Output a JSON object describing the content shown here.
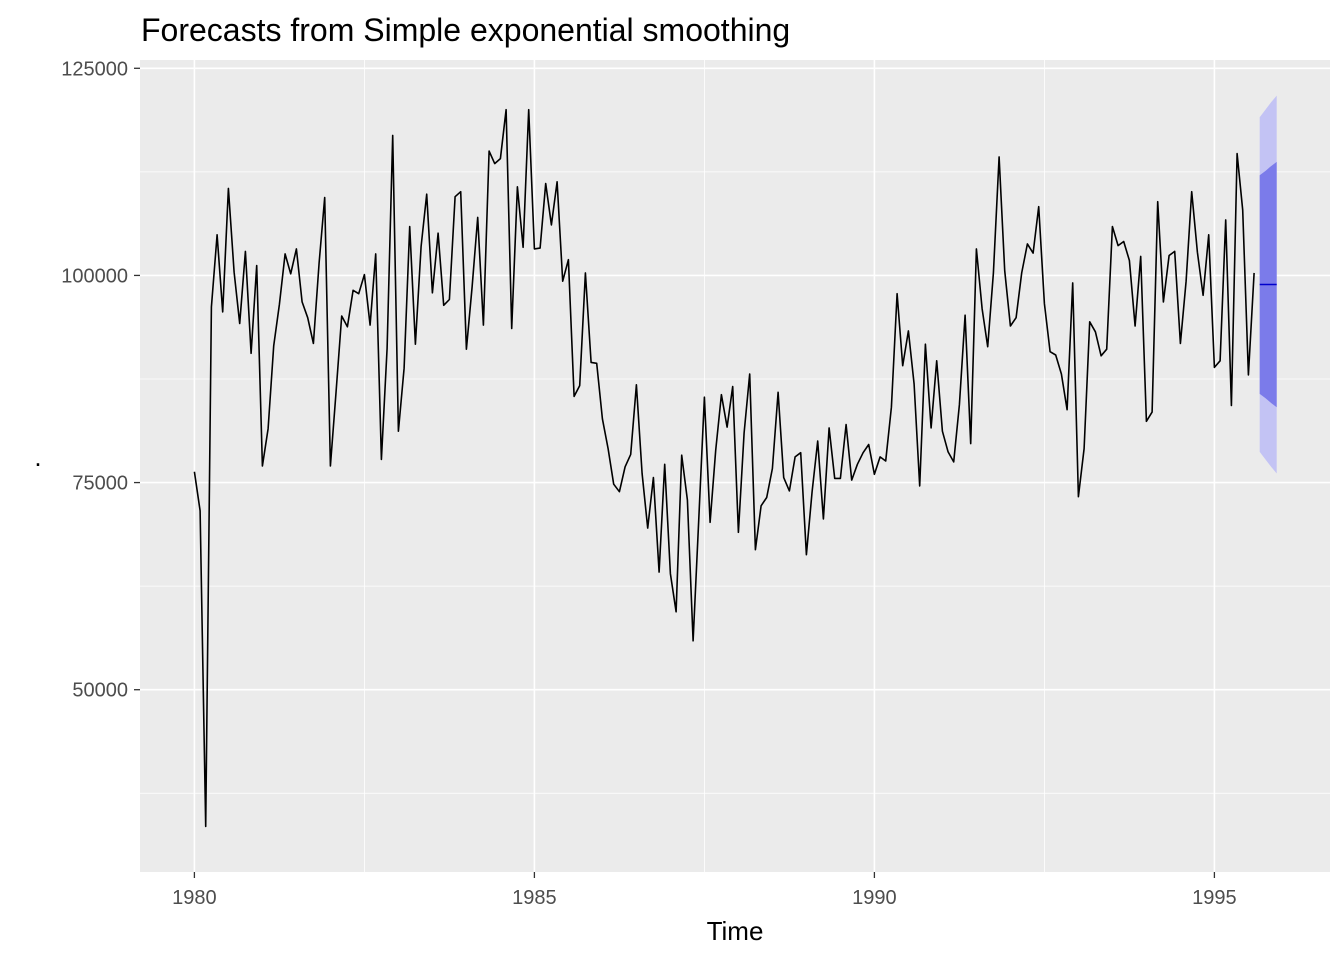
{
  "chart_data": {
    "type": "line",
    "title": "Forecasts from Simple exponential smoothing",
    "xlabel": "Time",
    "ylabel": ".",
    "xlim": [
      1979.2,
      1996.7
    ],
    "ylim": [
      28000,
      126000
    ],
    "x_ticks": [
      1980,
      1985,
      1990,
      1995
    ],
    "x_tick_labels": [
      "1980",
      "1985",
      "1990",
      "1995"
    ],
    "y_ticks": [
      50000,
      75000,
      100000,
      125000
    ],
    "y_tick_labels": [
      "50000",
      "75000",
      "100000",
      "125000"
    ],
    "grid": true,
    "legend": "none",
    "colors": {
      "panel": "#ebebeb",
      "grid": "#ffffff",
      "series": "#000000",
      "forecast": "#0000cc",
      "pi80": "#7b7bea",
      "pi95": "#c3c3f4"
    },
    "series": [
      {
        "start": 1980.0,
        "step": 0.0833333,
        "values": [
          76300,
          71600,
          33500,
          96200,
          104900,
          95600,
          110500,
          100400,
          94200,
          102900,
          90600,
          101200,
          77000,
          81500,
          91500,
          96500,
          102600,
          100200,
          103200,
          96800,
          94900,
          91800,
          101500,
          109400,
          77000,
          86000,
          95100,
          93800,
          98200,
          97800,
          100100,
          94000,
          102600,
          77800,
          91200,
          116900,
          81200,
          88800,
          105900,
          91700,
          103500,
          109800,
          97900,
          105100,
          96400,
          97100,
          109500,
          110100,
          91100,
          98600,
          107000,
          94000,
          115000,
          113500,
          114100,
          120000,
          93600,
          110700,
          103400,
          120000,
          103200,
          103300,
          111100,
          106100,
          111300,
          99300,
          101900,
          85400,
          86700,
          100300,
          89500,
          89400,
          82700,
          79100,
          74800,
          73900,
          76900,
          78400,
          86800,
          76100,
          69500,
          75600,
          64200,
          77200,
          64000,
          59400,
          78300,
          72900,
          55900,
          70400,
          85300,
          70200,
          78900,
          85600,
          81700,
          86600,
          69000,
          81000,
          88100,
          66900,
          72200,
          73200,
          76700,
          85900,
          75600,
          74000,
          78100,
          78600,
          66300,
          73900,
          80000,
          70600,
          81600,
          75500,
          75500,
          82000,
          75300,
          77200,
          78600,
          79600,
          76000,
          78100,
          77600,
          84100,
          97800,
          89100,
          93300,
          86900,
          74600,
          91700,
          81600,
          89700,
          81200,
          78700,
          77500,
          84400,
          95200,
          79700,
          103200,
          96000,
          91400,
          100300,
          114300,
          100600,
          93900,
          94900,
          100300,
          103800,
          102700,
          108300,
          96600,
          90800,
          90400,
          88100,
          83800,
          99100,
          73300,
          79100,
          94400,
          93200,
          90300,
          91100,
          105900,
          103600,
          104100,
          101800,
          93900,
          102300,
          82400,
          83500,
          108900,
          96800,
          102400,
          102900,
          91800,
          99300,
          110100,
          102800,
          97600,
          104900,
          88900,
          89700,
          106700,
          84300,
          114700,
          107900,
          88000,
          100300
        ]
      }
    ],
    "forecast": {
      "start": 1995.6667,
      "step": 0.0833333,
      "point": [
        98900,
        98900,
        98900,
        98900
      ],
      "lo80": [
        85700,
        85200,
        84600,
        84100
      ],
      "hi80": [
        112100,
        112600,
        113200,
        113700
      ],
      "lo95": [
        78700,
        77800,
        76900,
        76100
      ],
      "hi95": [
        119100,
        120000,
        120900,
        121700
      ]
    }
  }
}
